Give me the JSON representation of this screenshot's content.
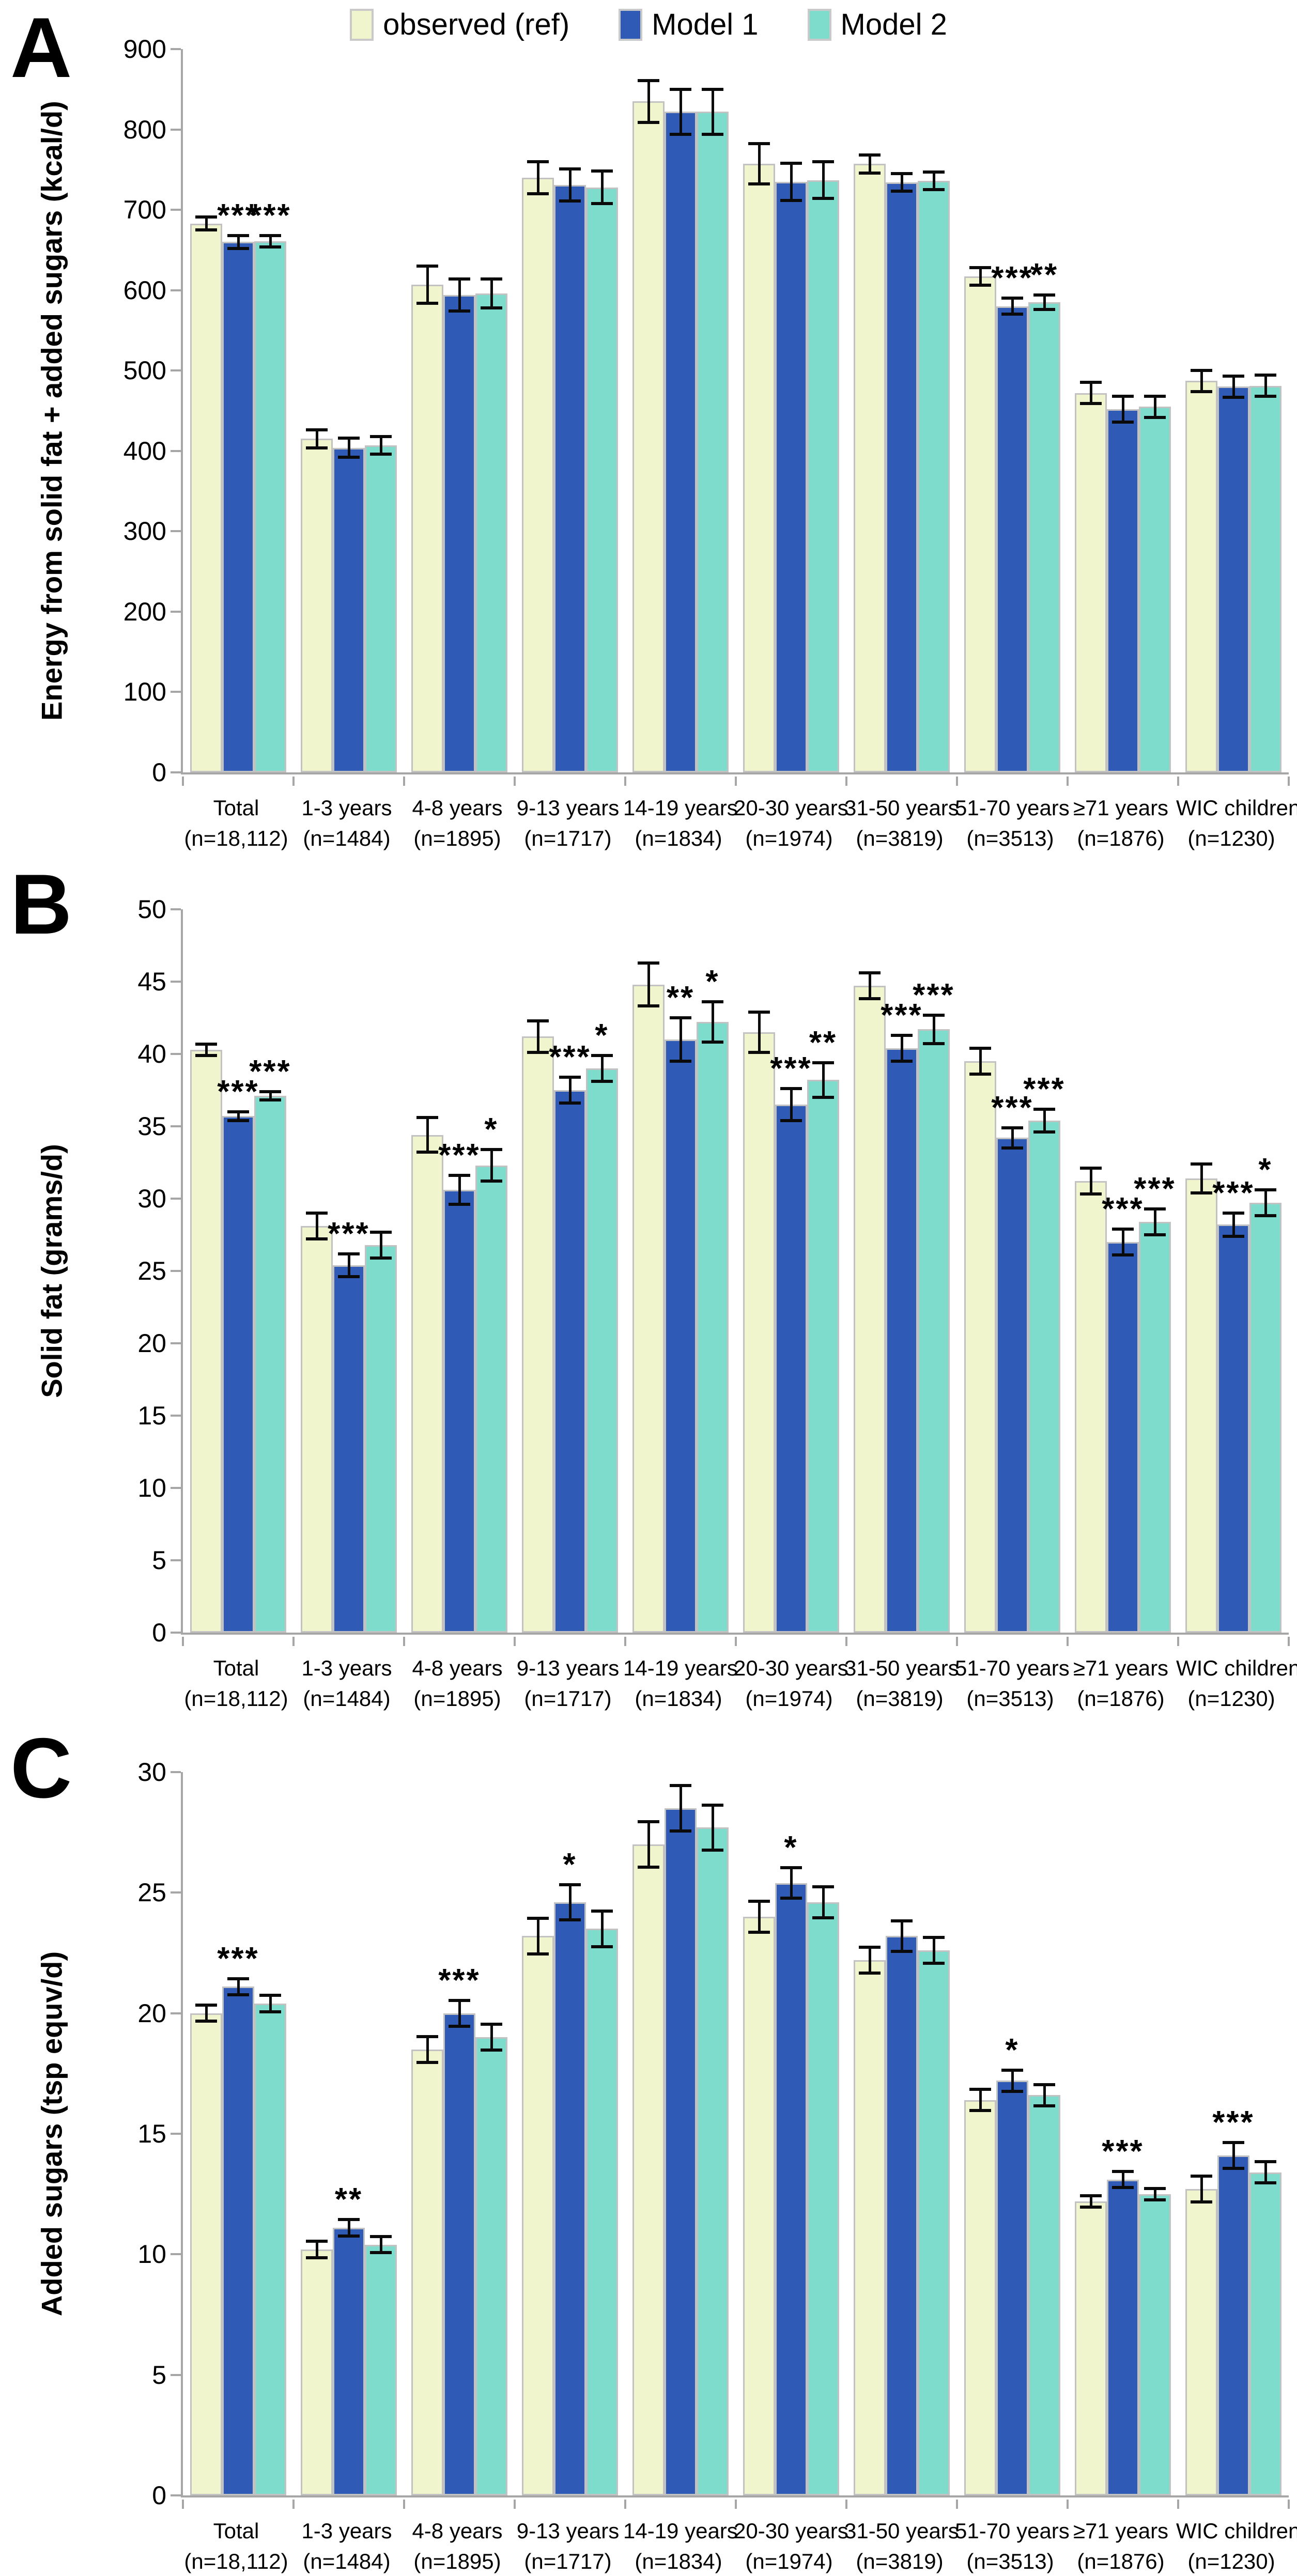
{
  "figure": {
    "background": "#ffffff",
    "axis_color": "#A6A6A6",
    "bar_border_color": "#C2C2C2",
    "error_bar_color": "#0a0a0a"
  },
  "chart_data": [
    {
      "type": "bar",
      "panel_label": "A",
      "title": "",
      "xlabel": "",
      "ylabel": "Energy from solid fat + added sugars (kcal/d)",
      "ylim": [
        0,
        900
      ],
      "ytick_step": 100,
      "grid": false,
      "legend_position": "top",
      "categories": [
        [
          "Total",
          "(n=18,112)"
        ],
        [
          "1-3 years",
          "(n=1484)"
        ],
        [
          "4-8 years",
          "(n=1895)"
        ],
        [
          "9-13 years",
          "(n=1717)"
        ],
        [
          "14-19 years",
          "(n=1834)"
        ],
        [
          "20-30 years",
          "(n=1974)"
        ],
        [
          "31-50 years",
          "(n=3819)"
        ],
        [
          "51-70 years",
          "(n=3513)"
        ],
        [
          "≥71 years",
          "(n=1876)"
        ],
        [
          "WIC children",
          "(n=1230)"
        ]
      ],
      "series": [
        {
          "name": "observed (ref)",
          "color": "#F0F5CE",
          "values": [
            683,
            415,
            607,
            740,
            835,
            757,
            757,
            617,
            472,
            487
          ],
          "errors": [
            10,
            13,
            25,
            22,
            28,
            27,
            13,
            13,
            15,
            15
          ],
          "stars": [
            "",
            "",
            "",
            "",
            "",
            "",
            "",
            "",
            "",
            ""
          ]
        },
        {
          "name": "Model 1",
          "color": "#2F5AB6",
          "values": [
            660,
            404,
            594,
            731,
            822,
            735,
            734,
            580,
            452,
            480
          ],
          "errors": [
            10,
            14,
            22,
            22,
            30,
            25,
            13,
            12,
            18,
            15
          ],
          "stars": [
            "***",
            "",
            "",
            "",
            "",
            "",
            "",
            "***",
            "",
            ""
          ]
        },
        {
          "name": "Model 2",
          "color": "#7DDCCB",
          "values": [
            661,
            407,
            596,
            728,
            822,
            737,
            736,
            585,
            455,
            481
          ],
          "errors": [
            9,
            13,
            20,
            22,
            30,
            25,
            13,
            11,
            15,
            15
          ],
          "stars": [
            "***",
            "",
            "",
            "",
            "",
            "",
            "",
            "**",
            "",
            ""
          ]
        }
      ]
    },
    {
      "type": "bar",
      "panel_label": "B",
      "title": "",
      "xlabel": "",
      "ylabel": "Solid fat (grams/d)",
      "ylim": [
        0,
        50
      ],
      "ytick_step": 5,
      "grid": false,
      "legend_position": "none",
      "categories": [
        [
          "Total",
          "(n=18,112)"
        ],
        [
          "1-3 years",
          "(n=1484)"
        ],
        [
          "4-8 years",
          "(n=1895)"
        ],
        [
          "9-13 years",
          "(n=1717)"
        ],
        [
          "14-19 years",
          "(n=1834)"
        ],
        [
          "20-30 years",
          "(n=1974)"
        ],
        [
          "31-50 years",
          "(n=3819)"
        ],
        [
          "51-70 years",
          "(n=3513)"
        ],
        [
          "≥71 years",
          "(n=1876)"
        ],
        [
          "WIC children",
          "(n=1230)"
        ]
      ],
      "series": [
        {
          "name": "observed (ref)",
          "color": "#F0F5CE",
          "values": [
            40.3,
            28.1,
            34.4,
            41.2,
            44.8,
            41.5,
            44.7,
            39.5,
            31.2,
            31.4
          ],
          "errors": [
            0.5,
            1.0,
            1.3,
            1.2,
            1.6,
            1.5,
            1.0,
            1.0,
            1.0,
            1.1
          ],
          "stars": [
            "",
            "",
            "",
            "",
            "",
            "",
            "",
            "",
            "",
            ""
          ]
        },
        {
          "name": "Model 1",
          "color": "#2F5AB6",
          "values": [
            35.7,
            25.4,
            30.6,
            37.5,
            41.0,
            36.5,
            40.4,
            34.2,
            27.0,
            28.2
          ],
          "errors": [
            0.4,
            0.9,
            1.1,
            1.0,
            1.6,
            1.2,
            1.0,
            0.8,
            1.0,
            0.9
          ],
          "stars": [
            "***",
            "***",
            "***",
            "***",
            "**",
            "***",
            "***",
            "***",
            "***",
            "***"
          ]
        },
        {
          "name": "Model 2",
          "color": "#7DDCCB",
          "values": [
            37.1,
            26.8,
            32.3,
            39.0,
            42.2,
            38.2,
            41.7,
            35.4,
            28.4,
            29.7
          ],
          "errors": [
            0.4,
            1.0,
            1.2,
            1.0,
            1.5,
            1.3,
            1.1,
            0.9,
            1.0,
            1.0
          ],
          "stars": [
            "***",
            "",
            "*",
            "*",
            "*",
            "**",
            "***",
            "***",
            "***",
            "*"
          ]
        }
      ]
    },
    {
      "type": "bar",
      "panel_label": "C",
      "title": "",
      "xlabel": "",
      "ylabel": "Added sugars (tsp equv/d)",
      "ylim": [
        0,
        30
      ],
      "ytick_step": 5,
      "grid": false,
      "legend_position": "none",
      "categories": [
        [
          "Total",
          "(n=18,112)"
        ],
        [
          "1-3 years",
          "(n=1484)"
        ],
        [
          "4-8 years",
          "(n=1895)"
        ],
        [
          "9-13 years",
          "(n=1717)"
        ],
        [
          "14-19 years",
          "(n=1834)"
        ],
        [
          "20-30 years",
          "(n=1974)"
        ],
        [
          "31-50 years",
          "(n=3819)"
        ],
        [
          "51-70 years",
          "(n=3513)"
        ],
        [
          "≥71 years",
          "(n=1876)"
        ],
        [
          "WIC children",
          "(n=1230)"
        ]
      ],
      "series": [
        {
          "name": "observed (ref)",
          "color": "#F0F5CE",
          "values": [
            20.0,
            10.2,
            18.5,
            23.2,
            27.0,
            24.0,
            22.2,
            16.4,
            12.2,
            12.7
          ],
          "errors": [
            0.4,
            0.4,
            0.6,
            0.8,
            1.0,
            0.7,
            0.6,
            0.5,
            0.3,
            0.6
          ],
          "stars": [
            "",
            "",
            "",
            "",
            "",
            "",
            "",
            "",
            "",
            ""
          ]
        },
        {
          "name": "Model 1",
          "color": "#2F5AB6",
          "values": [
            21.1,
            11.1,
            20.0,
            24.6,
            28.5,
            25.4,
            23.2,
            17.2,
            13.1,
            14.1
          ],
          "errors": [
            0.4,
            0.4,
            0.6,
            0.8,
            1.0,
            0.7,
            0.7,
            0.5,
            0.4,
            0.6
          ],
          "stars": [
            "***",
            "**",
            "***",
            "*",
            "",
            "*",
            "",
            "*",
            "***",
            "***"
          ]
        },
        {
          "name": "Model 2",
          "color": "#7DDCCB",
          "values": [
            20.4,
            10.4,
            19.0,
            23.5,
            27.7,
            24.6,
            22.6,
            16.6,
            12.5,
            13.4
          ],
          "errors": [
            0.4,
            0.4,
            0.6,
            0.8,
            1.0,
            0.7,
            0.6,
            0.5,
            0.3,
            0.5
          ],
          "stars": [
            "",
            "",
            "",
            "",
            "",
            "",
            "",
            "",
            "",
            ""
          ]
        }
      ]
    }
  ]
}
